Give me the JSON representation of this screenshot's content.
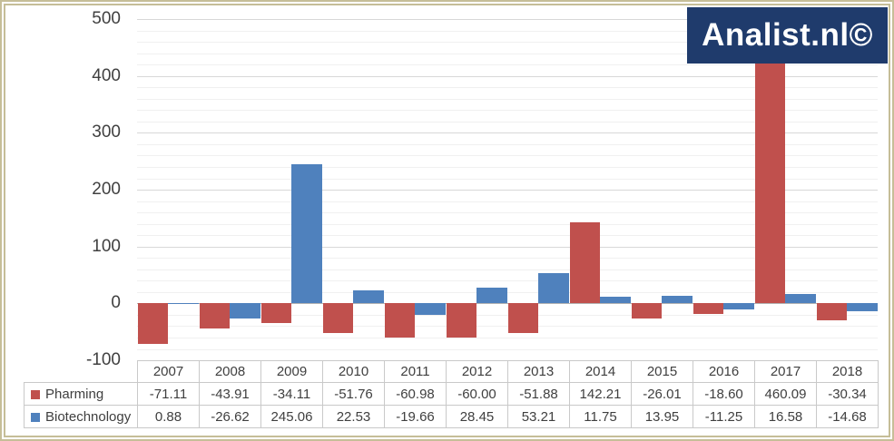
{
  "logo": {
    "text": "Analist.nl©",
    "bg_color": "#1f3b6c",
    "text_color": "#ffffff"
  },
  "chart_data": {
    "type": "bar",
    "title": "",
    "xlabel": "",
    "ylabel": "",
    "categories": [
      "2007",
      "2008",
      "2009",
      "2010",
      "2011",
      "2012",
      "2013",
      "2014",
      "2015",
      "2016",
      "2017",
      "2018"
    ],
    "series": [
      {
        "name": "Pharming",
        "color": "#c0504d",
        "values": [
          -71.11,
          -43.91,
          -34.11,
          -51.76,
          -60.98,
          -60.0,
          -51.88,
          142.21,
          -26.01,
          -18.6,
          460.09,
          -30.34
        ]
      },
      {
        "name": "Biotechnology",
        "color": "#4f81bd",
        "values": [
          0.88,
          -26.62,
          245.06,
          22.53,
          -19.66,
          28.45,
          53.21,
          11.75,
          13.95,
          -11.25,
          16.58,
          -14.68
        ]
      }
    ],
    "ylim": [
      -100,
      500
    ],
    "y_major_step": 100,
    "y_minor_step": 20,
    "y_tick_labels": [
      "500",
      "400",
      "300",
      "200",
      "100",
      "0",
      "-100"
    ],
    "grid": true,
    "legend_position": "table-left-column",
    "value_decimals": 2
  },
  "colors": {
    "frame": "#c6be98",
    "grid_major": "#d8d8d8",
    "grid_minor": "#f0f0f0",
    "zero_line": "#b3b3b3",
    "axis_text": "#404040",
    "table_border": "#c9c9c9",
    "table_text": "#3f3f3f"
  }
}
